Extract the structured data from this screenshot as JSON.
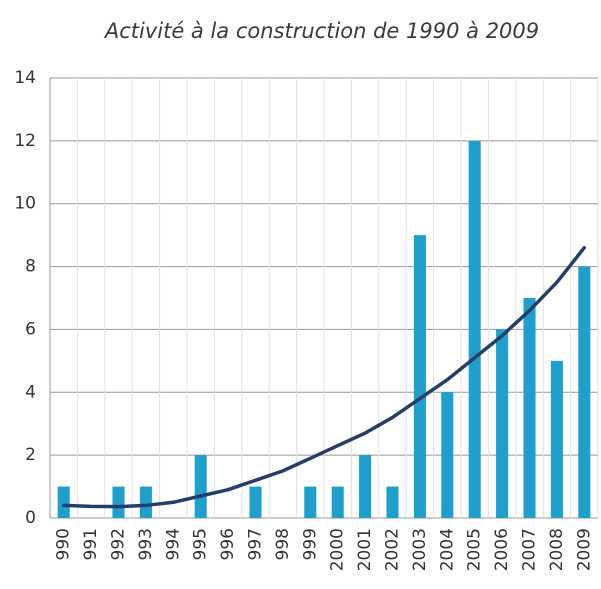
{
  "chart_data": {
    "type": "bar",
    "title": "Activité à la construction de 1990 à 2009",
    "categories": [
      "990",
      "991",
      "992",
      "993",
      "994",
      "995",
      "996",
      "997",
      "998",
      "999",
      "2000",
      "2001",
      "2002",
      "2003",
      "2004",
      "2005",
      "2006",
      "2007",
      "2008",
      "2009"
    ],
    "series": [
      {
        "type": "bar",
        "color": "#1f9fcc",
        "values": [
          1,
          0,
          1,
          1,
          0,
          2,
          0,
          1,
          0,
          1,
          1,
          2,
          1,
          9,
          4,
          12,
          6,
          7,
          5,
          8
        ]
      },
      {
        "type": "line",
        "color": "#263d6b",
        "values": [
          0.4,
          0.37,
          0.36,
          0.4,
          0.5,
          0.7,
          0.9,
          1.2,
          1.5,
          1.9,
          2.3,
          2.7,
          3.2,
          3.8,
          4.4,
          5.1,
          5.8,
          6.6,
          7.5,
          8.6
        ]
      }
    ],
    "ylim": [
      0,
      14
    ],
    "yticks": [
      0,
      2,
      4,
      6,
      8,
      10,
      12,
      14
    ],
    "grid": true
  }
}
